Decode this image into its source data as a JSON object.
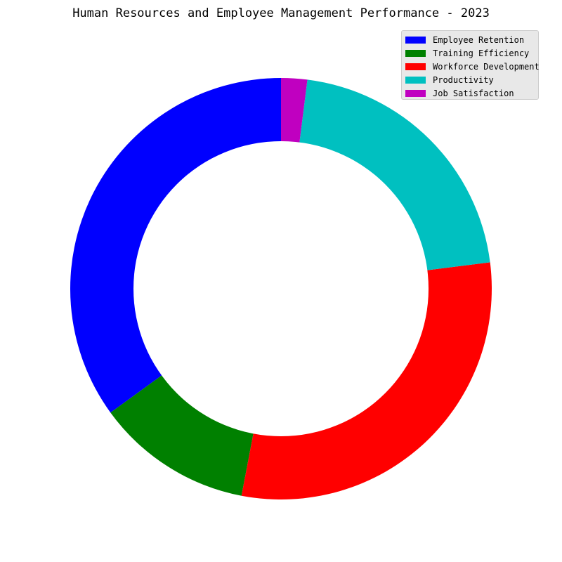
{
  "chart_data": {
    "type": "pie",
    "variant": "donut",
    "title": "Human Resources and Employee Management Performance - 2023",
    "start_angle_deg": 90,
    "direction": "counterclockwise",
    "legend_position": "upper-right",
    "slices": [
      {
        "label": "Employee Retention",
        "value": 35.0,
        "color": "#0000ff"
      },
      {
        "label": "Training Efficiency",
        "value": 12.0,
        "color": "#008000"
      },
      {
        "label": "Workforce Development",
        "value": 30.0,
        "color": "#ff0000"
      },
      {
        "label": "Productivity",
        "value": 21.0,
        "color": "#00c0c0"
      },
      {
        "label": "Job Satisfaction",
        "value": 2.0,
        "color": "#c000c0"
      }
    ]
  }
}
